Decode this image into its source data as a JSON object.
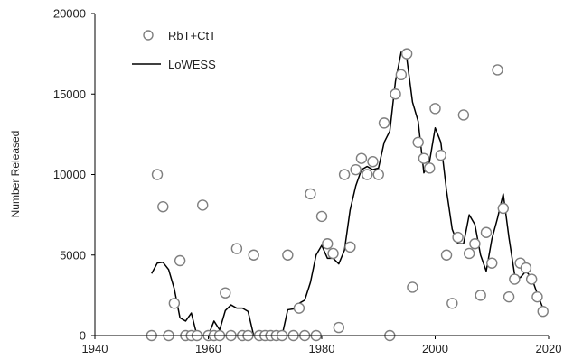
{
  "chart_data": {
    "type": "scatter",
    "ylabel": "Number Released",
    "xlim": [
      1940,
      2020
    ],
    "ylim": [
      0,
      20000
    ],
    "xticks": [
      1940,
      1960,
      1980,
      2000,
      2020
    ],
    "yticks": [
      0,
      5000,
      10000,
      15000,
      20000
    ],
    "grid": false,
    "legend_position": "top-left",
    "colors": {
      "points_stroke": "#7f7f7f",
      "points_fill": "#ffffff",
      "line": "#000000",
      "axis": "#000000"
    },
    "series": [
      {
        "name": "RbT+CtT",
        "kind": "scatter",
        "x": [
          1950,
          1951,
          1952,
          1953,
          1954,
          1955,
          1956,
          1957,
          1958,
          1959,
          1960,
          1961,
          1962,
          1963,
          1964,
          1965,
          1966,
          1967,
          1968,
          1969,
          1970,
          1971,
          1972,
          1973,
          1974,
          1975,
          1976,
          1977,
          1978,
          1979,
          1980,
          1981,
          1982,
          1983,
          1984,
          1985,
          1986,
          1987,
          1988,
          1989,
          1990,
          1991,
          1992,
          1993,
          1994,
          1995,
          1996,
          1997,
          1998,
          1999,
          2000,
          2001,
          2002,
          2003,
          2004,
          2005,
          2006,
          2007,
          2008,
          2009,
          2010,
          2011,
          2012,
          2013,
          2014,
          2015,
          2016,
          2017,
          2018,
          2019
        ],
        "y": [
          0,
          10000,
          8000,
          0,
          2000,
          4650,
          0,
          0,
          0,
          8100,
          0,
          0,
          0,
          2650,
          0,
          5400,
          0,
          0,
          5000,
          0,
          0,
          0,
          0,
          0,
          5000,
          0,
          1700,
          0,
          8800,
          0,
          7400,
          5700,
          5100,
          500,
          10000,
          5500,
          10300,
          11000,
          10000,
          10800,
          10000,
          13200,
          0,
          15000,
          16200,
          17500,
          3000,
          12000,
          11000,
          10400,
          14100,
          11200,
          5000,
          2000,
          6100,
          13700,
          5100,
          5700,
          2500,
          6400,
          4500,
          16500,
          7900,
          2400,
          3500,
          4500,
          4200,
          3500,
          2400,
          1500
        ]
      },
      {
        "name": "LoWESS",
        "kind": "line",
        "x": [
          1950,
          1951,
          1952,
          1953,
          1954,
          1955,
          1956,
          1957,
          1958,
          1959,
          1960,
          1961,
          1962,
          1963,
          1964,
          1965,
          1966,
          1967,
          1968,
          1969,
          1970,
          1971,
          1972,
          1973,
          1974,
          1975,
          1976,
          1977,
          1978,
          1979,
          1980,
          1981,
          1982,
          1983,
          1984,
          1985,
          1986,
          1987,
          1988,
          1989,
          1990,
          1991,
          1992,
          1993,
          1994,
          1995,
          1996,
          1997,
          1998,
          1999,
          2000,
          2001,
          2002,
          2003,
          2004,
          2005,
          2006,
          2007,
          2008,
          2009,
          2010,
          2011,
          2012,
          2013,
          2014,
          2015,
          2016,
          2017,
          2018,
          2019
        ],
        "y": [
          3850,
          4500,
          4550,
          4100,
          2900,
          1100,
          900,
          1400,
          0,
          0,
          0,
          900,
          350,
          1550,
          1900,
          1700,
          1700,
          1500,
          0,
          0,
          0,
          0,
          0,
          0,
          1600,
          1650,
          2000,
          2200,
          3300,
          5000,
          5600,
          4800,
          4800,
          4450,
          5300,
          7800,
          9300,
          10300,
          10500,
          10300,
          10400,
          12000,
          12700,
          15800,
          17600,
          17200,
          14500,
          13300,
          10100,
          10800,
          12900,
          12000,
          9000,
          6600,
          5700,
          5700,
          7500,
          6900,
          5000,
          4000,
          6000,
          7300,
          8800,
          6100,
          3800,
          3600,
          4000,
          3600,
          2600,
          1700
        ]
      }
    ]
  }
}
